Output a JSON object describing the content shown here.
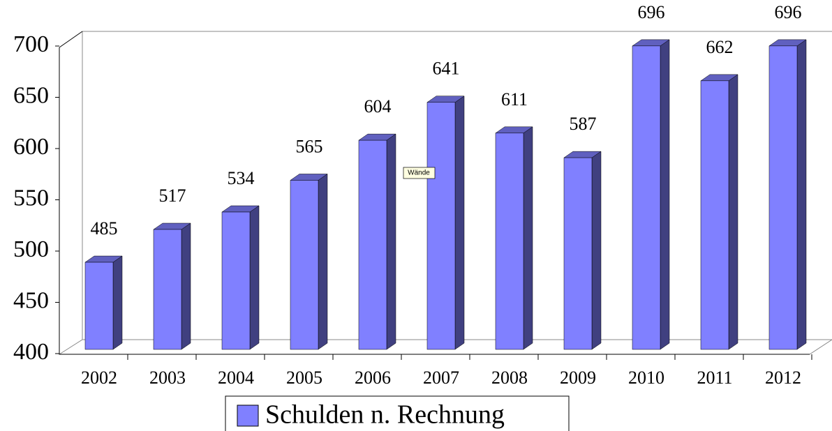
{
  "chart_data": {
    "type": "bar3d",
    "categories": [
      "2002",
      "2003",
      "2004",
      "2005",
      "2006",
      "2007",
      "2008",
      "2009",
      "2010",
      "2011",
      "2012"
    ],
    "series": [
      {
        "name": "Schulden n. Rechnung",
        "color": "#8080ff",
        "values": [
          485,
          517,
          534,
          565,
          604,
          641,
          611,
          587,
          696,
          662,
          696
        ]
      }
    ],
    "ylim": [
      400,
      700
    ],
    "yticks": [
      400,
      450,
      500,
      550,
      600,
      650,
      700
    ],
    "grid": false,
    "legend": "bottom",
    "tooltip": "Wände"
  }
}
